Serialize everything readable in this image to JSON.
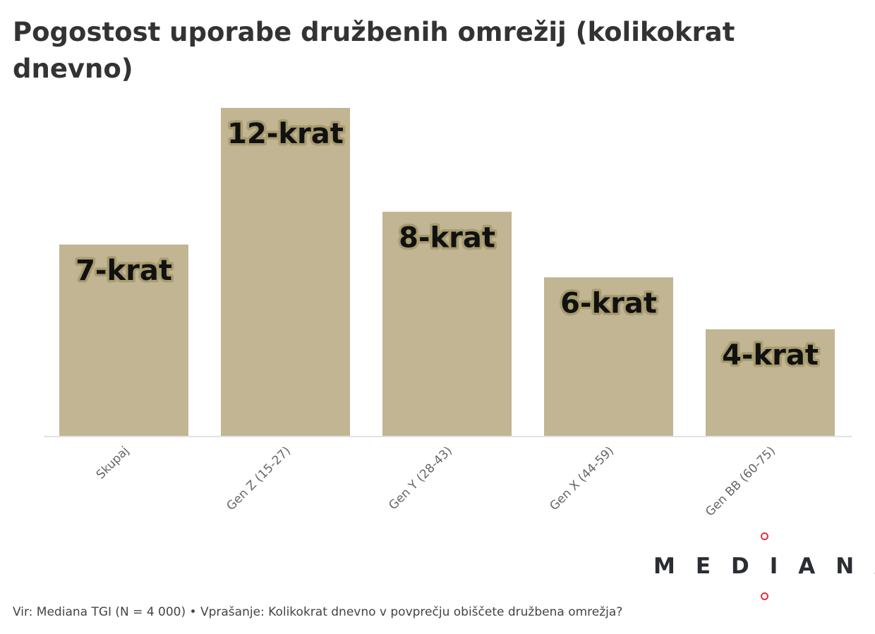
{
  "chart_data": {
    "type": "bar",
    "title": "Pogostost uporabe družbenih omrežij (kolikokrat dnevno)",
    "categories": [
      "Skupaj",
      "Gen Z (15-27)",
      "Gen Y (28-43)",
      "Gen X (44-59)",
      "Gen BB (60-75)"
    ],
    "values": [
      7,
      12,
      8.2,
      5.8,
      3.9
    ],
    "data_labels": [
      "7-krat",
      "12-krat",
      "8-krat",
      "6-krat",
      "4-krat"
    ],
    "xlabel": "",
    "ylabel": "",
    "ylim": [
      0,
      12
    ],
    "grid": false,
    "bar_color": "#c1b593",
    "label_halo_color": "#a99d70"
  },
  "footer": "Vir: Mediana TGI (N = 4 000) • Vprašanje: Kolikokrat dnevno v povprečju obiščete družbena omrežja?",
  "logo": {
    "text": "MEDIANA",
    "accent_color": "#e8303e"
  }
}
